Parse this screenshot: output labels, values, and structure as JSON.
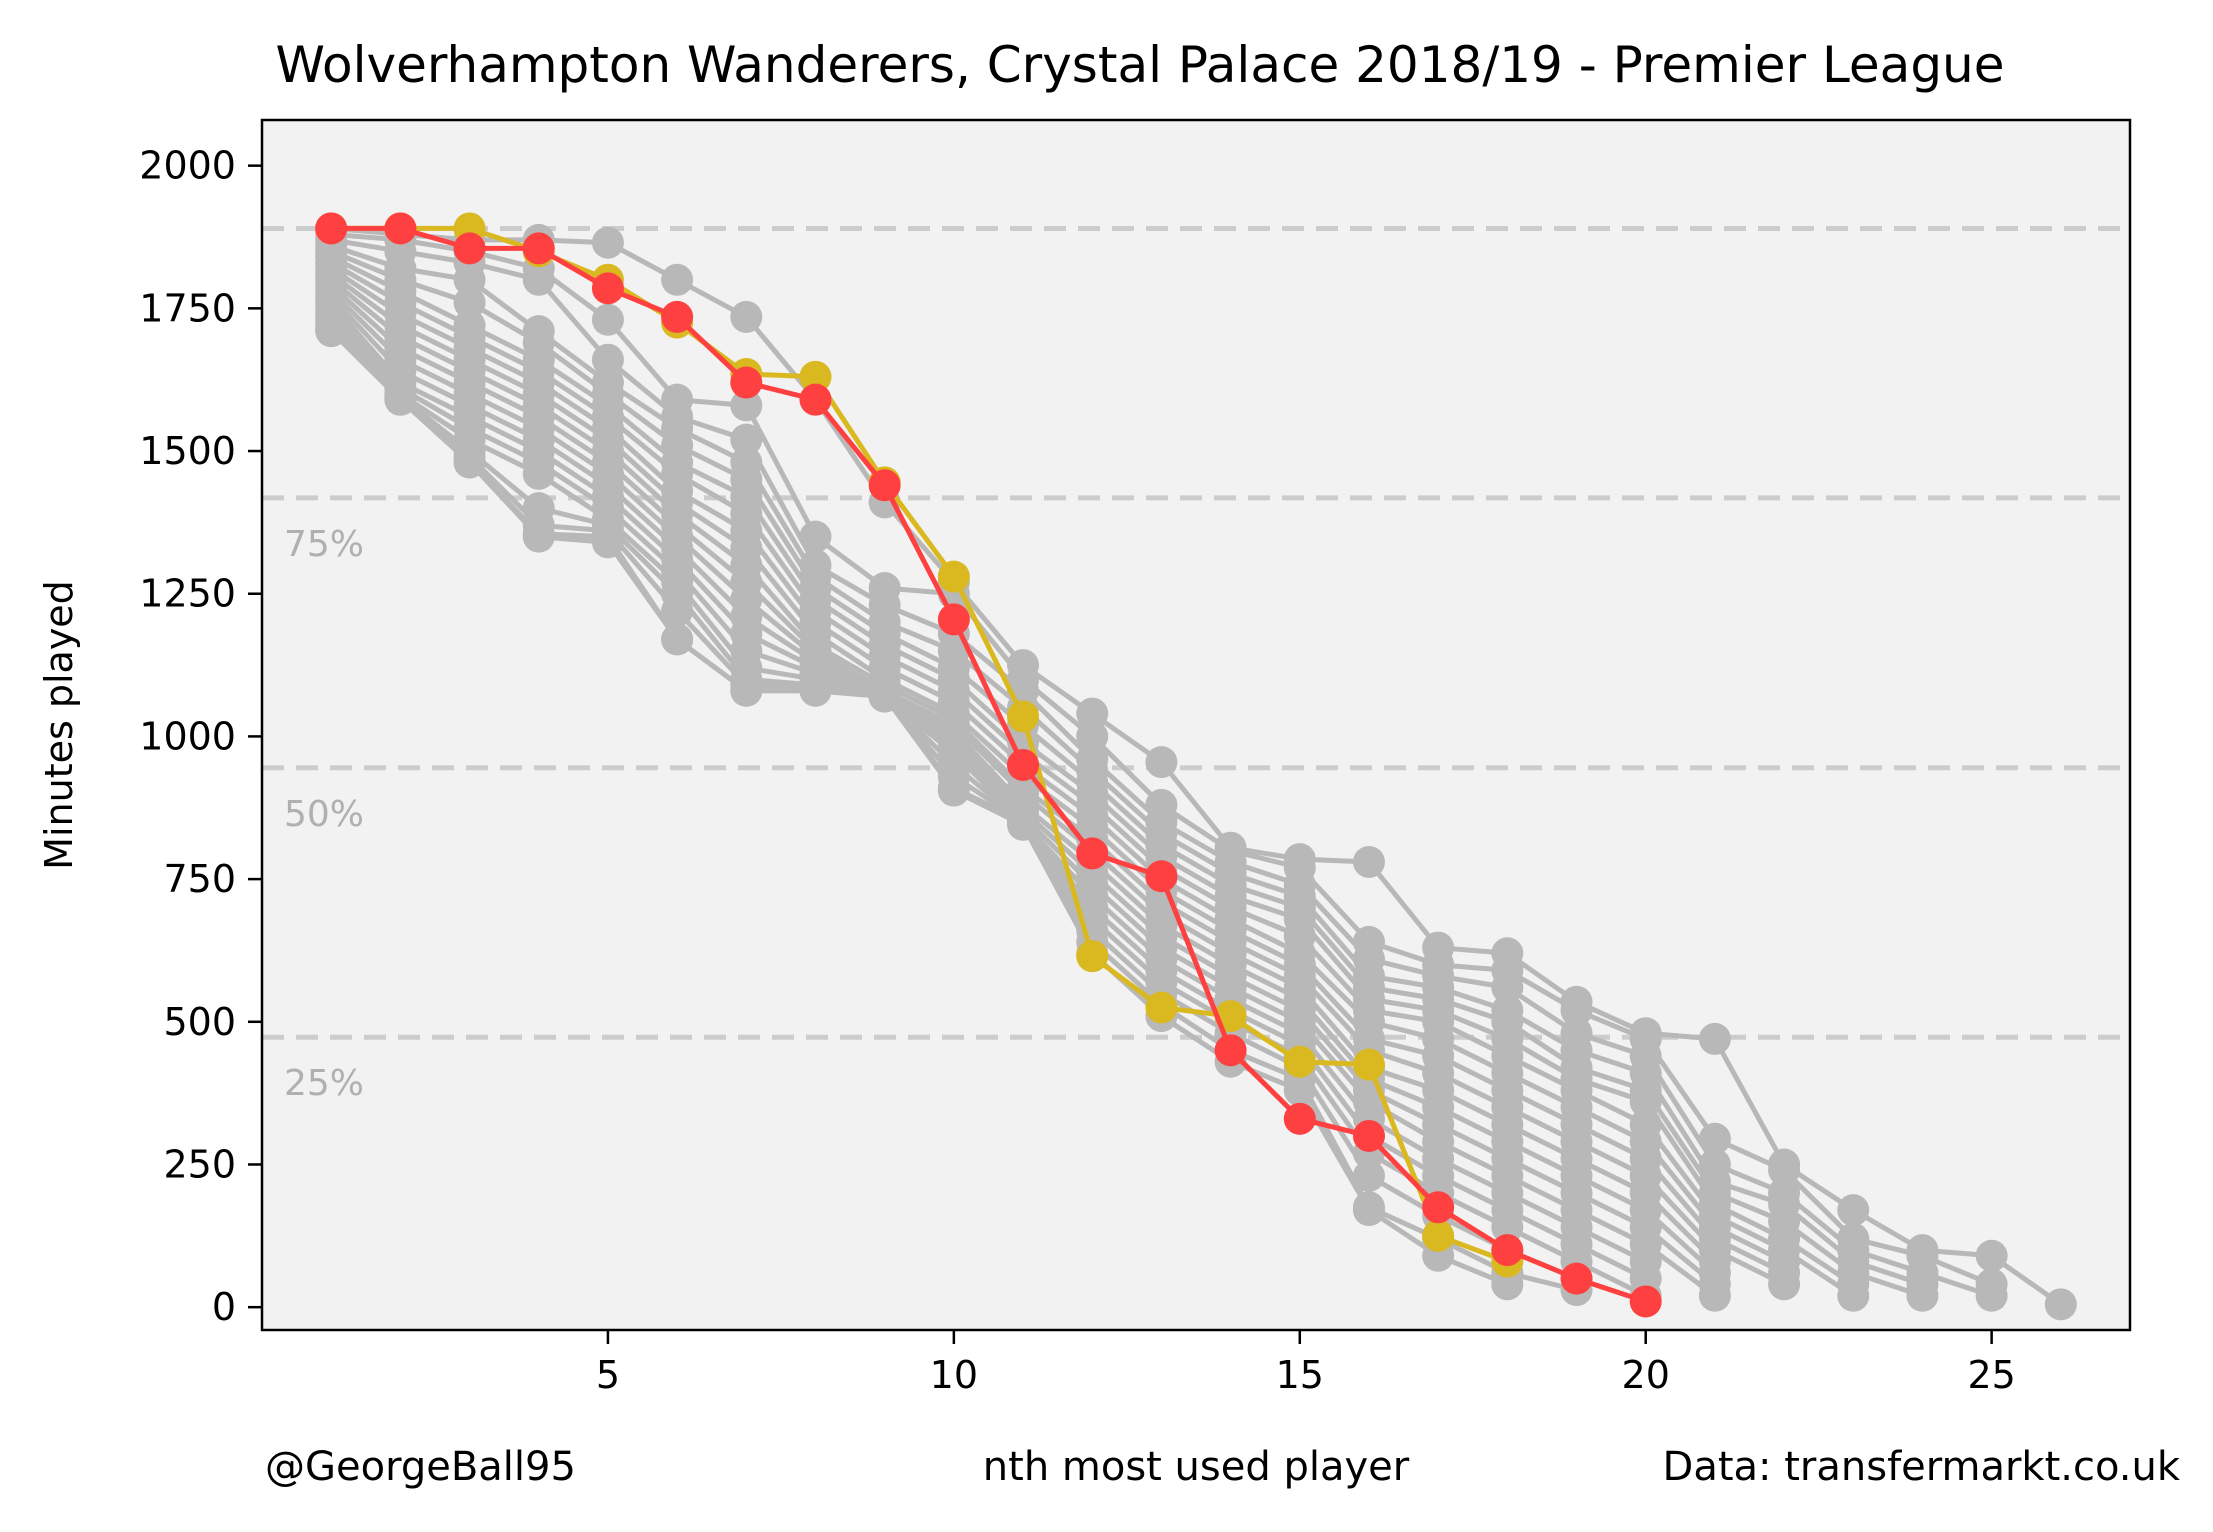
{
  "chart_data": {
    "type": "line",
    "title": "Wolverhampton Wanderers, Crystal Palace 2018/19 - Premier League",
    "xlabel": "nth most used player",
    "ylabel": "Minutes played",
    "xlim": [
      0,
      27
    ],
    "ylim": [
      -40,
      2080
    ],
    "xticks": [
      5,
      10,
      15,
      20,
      25
    ],
    "yticks": [
      0,
      250,
      500,
      750,
      1000,
      1250,
      1500,
      1750,
      2000
    ],
    "grid": false,
    "reference_lines": [
      {
        "y": 1890,
        "label": ""
      },
      {
        "y": 1418,
        "label": "75%"
      },
      {
        "y": 945,
        "label": "50%"
      },
      {
        "y": 473,
        "label": "25%"
      }
    ],
    "colors": {
      "background": "#f2f2f2",
      "others": "#b8b8b8",
      "reference": "#cccccc",
      "wolves": "#d9b820",
      "palace": "#ff4040"
    },
    "series": [
      {
        "name": "",
        "highlight": "wolves",
        "x": [
          1,
          2,
          3,
          4,
          5,
          6,
          7,
          8,
          9,
          10,
          11,
          12,
          13,
          14,
          15,
          16,
          17,
          18
        ],
        "values": [
          1890,
          1890,
          1890,
          1850,
          1800,
          1725,
          1635,
          1630,
          1445,
          1280,
          1035,
          615,
          525,
          510,
          430,
          425,
          125,
          80
        ]
      },
      {
        "name": "",
        "highlight": "palace",
        "x": [
          1,
          2,
          3,
          4,
          5,
          6,
          7,
          8,
          9,
          10,
          11,
          12,
          13,
          14,
          15,
          16,
          17,
          18,
          19,
          20
        ],
        "values": [
          1890,
          1890,
          1855,
          1855,
          1785,
          1735,
          1620,
          1590,
          1440,
          1205,
          950,
          795,
          755,
          450,
          330,
          300,
          175,
          100,
          50,
          10
        ]
      },
      {
        "name": "",
        "x": [
          1,
          2,
          3,
          4,
          5,
          6,
          7,
          8,
          9,
          10,
          11,
          12,
          13,
          14,
          15,
          16,
          17,
          18,
          19,
          20,
          21,
          22,
          23,
          24,
          25,
          26
        ],
        "values": [
          1890,
          1880,
          1870,
          1870,
          1865,
          1800,
          1735,
          1590,
          1410,
          1270,
          1125,
          1040,
          955,
          805,
          785,
          780,
          630,
          620,
          535,
          480,
          470,
          250,
          170,
          100,
          90,
          5
        ]
      },
      {
        "name": "",
        "x": [
          1,
          2,
          3,
          4,
          5,
          6,
          7,
          8,
          9,
          10,
          11,
          12,
          13,
          14,
          15,
          16,
          17,
          18,
          19,
          20,
          21,
          22,
          23,
          24,
          25
        ],
        "values": [
          1880,
          1870,
          1850,
          1820,
          1730,
          1590,
          1580,
          1350,
          1260,
          1250,
          1100,
          1000,
          880,
          800,
          770,
          640,
          600,
          590,
          520,
          470,
          295,
          240,
          120,
          90,
          40
        ]
      },
      {
        "name": "",
        "x": [
          1,
          2,
          3,
          4,
          5,
          6,
          7,
          8,
          9,
          10,
          11,
          12,
          13,
          14,
          15,
          16,
          17,
          18,
          19,
          20,
          21,
          22,
          23,
          24,
          25
        ],
        "values": [
          1870,
          1850,
          1830,
          1800,
          1660,
          1560,
          1520,
          1300,
          1230,
          1180,
          1080,
          960,
          850,
          780,
          740,
          610,
          580,
          560,
          480,
          440,
          250,
          200,
          100,
          60,
          20
        ]
      },
      {
        "name": "",
        "x": [
          1,
          2,
          3,
          4,
          5,
          6,
          7,
          8,
          9,
          10,
          11,
          12,
          13,
          14,
          15,
          16,
          17,
          18,
          19,
          20,
          21,
          22,
          23,
          24
        ],
        "values": [
          1860,
          1820,
          1800,
          1710,
          1620,
          1540,
          1480,
          1280,
          1200,
          1150,
          1050,
          940,
          830,
          760,
          720,
          580,
          560,
          520,
          450,
          410,
          220,
          180,
          80,
          40
        ]
      },
      {
        "name": "",
        "x": [
          1,
          2,
          3,
          4,
          5,
          6,
          7,
          8,
          9,
          10,
          11,
          12,
          13,
          14,
          15,
          16,
          17,
          18,
          19,
          20,
          21,
          22,
          23,
          24
        ],
        "values": [
          1850,
          1800,
          1760,
          1690,
          1600,
          1510,
          1450,
          1260,
          1180,
          1120,
          1020,
          920,
          810,
          740,
          700,
          560,
          540,
          500,
          420,
          380,
          200,
          150,
          60,
          20
        ]
      },
      {
        "name": "",
        "x": [
          1,
          2,
          3,
          4,
          5,
          6,
          7,
          8,
          9,
          10,
          11,
          12,
          13,
          14,
          15,
          16,
          17,
          18,
          19,
          20,
          21,
          22,
          23
        ],
        "values": [
          1840,
          1780,
          1720,
          1660,
          1580,
          1480,
          1420,
          1240,
          1160,
          1100,
          990,
          900,
          790,
          720,
          680,
          540,
          520,
          470,
          400,
          360,
          180,
          120,
          40
        ]
      },
      {
        "name": "",
        "x": [
          1,
          2,
          3,
          4,
          5,
          6,
          7,
          8,
          9,
          10,
          11,
          12,
          13,
          14,
          15,
          16,
          17,
          18,
          19,
          20,
          21,
          22,
          23
        ],
        "values": [
          1830,
          1760,
          1700,
          1640,
          1560,
          1460,
          1390,
          1220,
          1140,
          1080,
          970,
          880,
          770,
          700,
          650,
          520,
          500,
          440,
          380,
          320,
          160,
          100,
          20
        ]
      },
      {
        "name": "",
        "x": [
          1,
          2,
          3,
          4,
          5,
          6,
          7,
          8,
          9,
          10,
          11,
          12,
          13,
          14,
          15,
          16,
          17,
          18,
          19,
          20,
          21,
          22
        ],
        "values": [
          1820,
          1740,
          1680,
          1620,
          1540,
          1430,
          1360,
          1200,
          1120,
          1060,
          950,
          860,
          750,
          680,
          620,
          500,
          470,
          410,
          350,
          290,
          140,
          80
        ]
      },
      {
        "name": "",
        "x": [
          1,
          2,
          3,
          4,
          5,
          6,
          7,
          8,
          9,
          10,
          11,
          12,
          13,
          14,
          15,
          16,
          17,
          18,
          19,
          20,
          21,
          22
        ],
        "values": [
          1810,
          1720,
          1660,
          1600,
          1520,
          1410,
          1330,
          1180,
          1100,
          1040,
          930,
          840,
          730,
          660,
          600,
          470,
          440,
          380,
          320,
          260,
          120,
          60
        ]
      },
      {
        "name": "",
        "x": [
          1,
          2,
          3,
          4,
          5,
          6,
          7,
          8,
          9,
          10,
          11,
          12,
          13,
          14,
          15,
          16,
          17,
          18,
          19,
          20,
          21,
          22
        ],
        "values": [
          1800,
          1700,
          1640,
          1580,
          1500,
          1390,
          1300,
          1160,
          1090,
          1030,
          910,
          820,
          710,
          640,
          580,
          450,
          410,
          350,
          290,
          230,
          100,
          40
        ]
      },
      {
        "name": "",
        "x": [
          1,
          2,
          3,
          4,
          5,
          6,
          7,
          8,
          9,
          10,
          11,
          12,
          13,
          14,
          15,
          16,
          17,
          18,
          19,
          20,
          21
        ],
        "values": [
          1790,
          1680,
          1620,
          1560,
          1480,
          1370,
          1270,
          1150,
          1080,
          1020,
          900,
          800,
          690,
          620,
          560,
          420,
          380,
          320,
          260,
          200,
          80
        ]
      },
      {
        "name": "",
        "x": [
          1,
          2,
          3,
          4,
          5,
          6,
          7,
          8,
          9,
          10,
          11,
          12,
          13,
          14,
          15,
          16,
          17,
          18,
          19,
          20,
          21
        ],
        "values": [
          1780,
          1660,
          1600,
          1540,
          1460,
          1350,
          1240,
          1140,
          1075,
          1010,
          880,
          780,
          670,
          600,
          540,
          400,
          350,
          290,
          230,
          170,
          60
        ]
      },
      {
        "name": "",
        "x": [
          1,
          2,
          3,
          4,
          5,
          6,
          7,
          8,
          9,
          10,
          11,
          12,
          13,
          14,
          15,
          16,
          17,
          18,
          19,
          20,
          21
        ],
        "values": [
          1770,
          1640,
          1580,
          1520,
          1440,
          1330,
          1210,
          1130,
          1070,
          1000,
          870,
          760,
          650,
          580,
          520,
          380,
          320,
          260,
          200,
          140,
          40
        ]
      },
      {
        "name": "",
        "x": [
          1,
          2,
          3,
          4,
          5,
          6,
          7,
          8,
          9,
          10,
          11,
          12,
          13,
          14,
          15,
          16,
          17,
          18,
          19,
          20,
          21
        ],
        "values": [
          1760,
          1620,
          1560,
          1500,
          1420,
          1310,
          1180,
          1120,
          1070,
          990,
          860,
          740,
          630,
          560,
          500,
          360,
          290,
          230,
          170,
          110,
          20
        ]
      },
      {
        "name": "",
        "x": [
          1,
          2,
          3,
          4,
          5,
          6,
          7,
          8,
          9,
          10,
          11,
          12,
          13,
          14,
          15,
          16,
          17,
          18,
          19,
          20
        ],
        "values": [
          1750,
          1610,
          1540,
          1480,
          1400,
          1290,
          1150,
          1110,
          1070,
          980,
          850,
          720,
          610,
          540,
          480,
          330,
          260,
          200,
          140,
          80
        ]
      },
      {
        "name": "",
        "x": [
          1,
          2,
          3,
          4,
          5,
          6,
          7,
          8,
          9,
          10,
          11,
          12,
          13,
          14,
          15,
          16,
          17,
          18,
          19,
          20
        ],
        "values": [
          1740,
          1600,
          1520,
          1460,
          1380,
          1270,
          1120,
          1100,
          1070,
          970,
          850,
          700,
          590,
          520,
          460,
          300,
          230,
          170,
          110,
          50
        ]
      },
      {
        "name": "",
        "x": [
          1,
          2,
          3,
          4,
          5,
          6,
          7,
          8,
          9,
          10,
          11,
          12,
          13,
          14,
          15,
          16,
          17,
          18,
          19,
          20
        ],
        "values": [
          1730,
          1595,
          1500,
          1400,
          1370,
          1250,
          1100,
          1090,
          1070,
          950,
          850,
          680,
          570,
          500,
          440,
          270,
          200,
          140,
          80,
          20
        ]
      },
      {
        "name": "",
        "x": [
          1,
          2,
          3,
          4,
          5,
          6,
          7,
          8,
          9,
          10,
          11,
          12,
          13,
          14,
          15,
          16,
          17,
          18,
          19
        ],
        "values": [
          1720,
          1590,
          1490,
          1370,
          1360,
          1220,
          1090,
          1085,
          1070,
          930,
          850,
          660,
          550,
          480,
          420,
          230,
          160,
          100,
          50
        ]
      },
      {
        "name": "",
        "x": [
          1,
          2,
          3,
          4,
          5,
          6,
          7,
          8,
          9,
          10,
          11,
          12,
          13,
          14,
          15,
          16,
          17,
          18,
          19
        ],
        "values": [
          1715,
          1590,
          1480,
          1355,
          1350,
          1170,
          1080,
          1080,
          1070,
          910,
          850,
          640,
          530,
          450,
          400,
          175,
          120,
          60,
          30
        ]
      },
      {
        "name": "",
        "x": [
          1,
          2,
          3,
          4,
          5,
          6,
          7,
          8,
          9,
          10,
          11,
          12,
          13,
          14,
          15,
          16,
          17,
          18
        ],
        "values": [
          1710,
          1590,
          1480,
          1350,
          1340,
          1170,
          1080,
          1080,
          1070,
          905,
          845,
          620,
          510,
          430,
          380,
          170,
          90,
          40
        ]
      }
    ],
    "annotations": {
      "left": "@GeorgeBall95",
      "right": "Data: transfermarkt.co.uk"
    }
  }
}
